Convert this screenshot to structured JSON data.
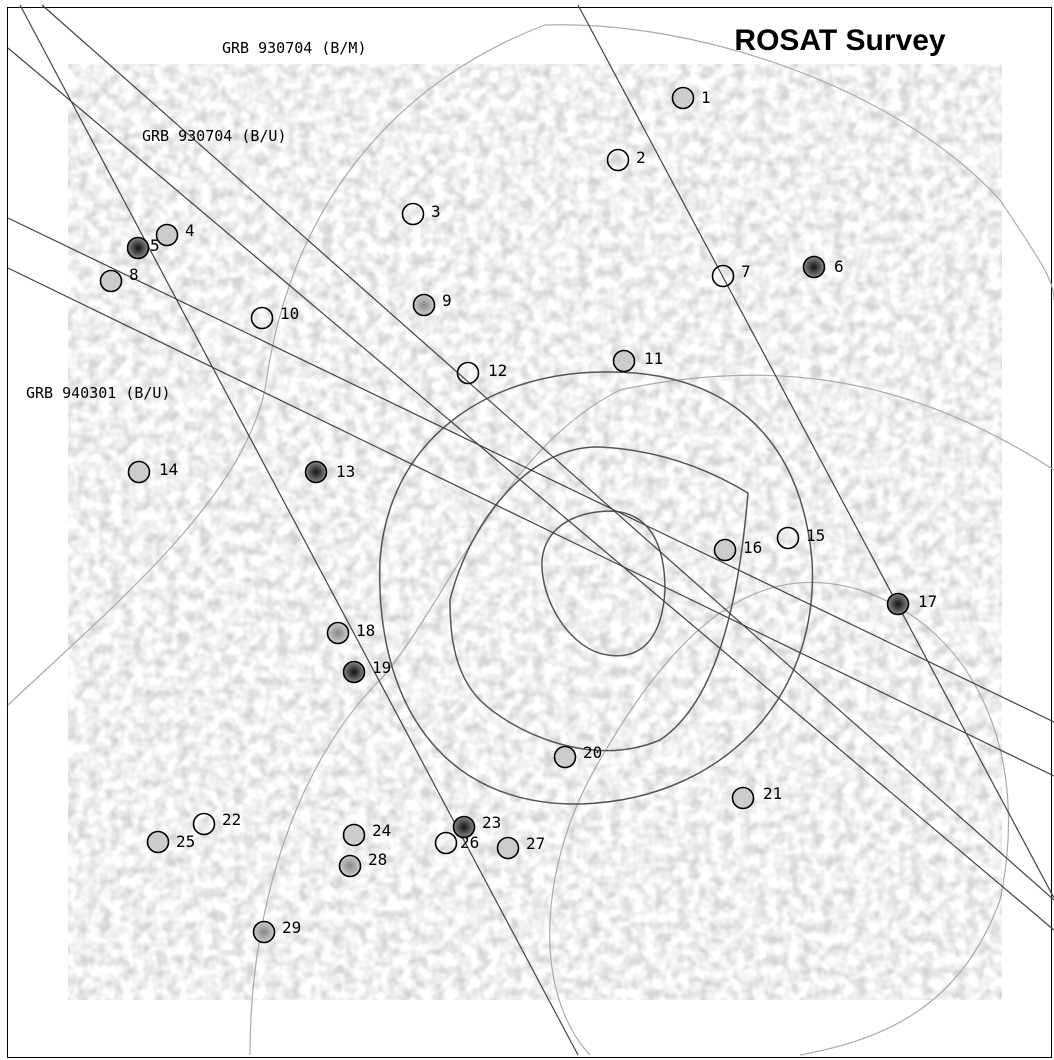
{
  "figure": {
    "title": "ROSAT Survey",
    "error_boxes": [
      "GRB 930704 (B/M)",
      "GRB 930704 (B/U)",
      "GRB 940301 (B/U)"
    ],
    "sources": [
      "1",
      "2",
      "3",
      "4",
      "5",
      "8",
      "6",
      "7",
      "9",
      "10",
      "11",
      "12",
      "13",
      "14",
      "15",
      "16",
      "17",
      "18",
      "19",
      "20",
      "21",
      "22",
      "23",
      "24",
      "25",
      "26",
      "27",
      "28",
      "29"
    ]
  }
}
